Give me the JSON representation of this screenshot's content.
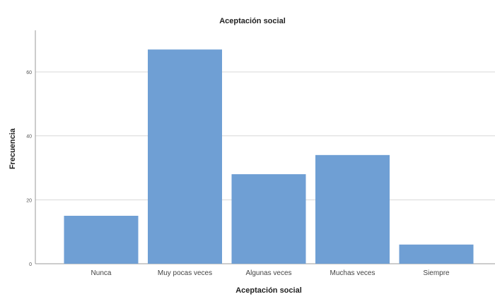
{
  "chart_data": {
    "type": "bar",
    "title": "Aceptación social",
    "xlabel": "Aceptación social",
    "ylabel": "Frecuencia",
    "categories": [
      "Nunca",
      "Muy pocas veces",
      "Algunas veces",
      "Muchas veces",
      "Siempre"
    ],
    "values": [
      15,
      67,
      28,
      34,
      6
    ],
    "ylim": [
      0,
      73
    ],
    "yticks": [
      0,
      20,
      40,
      60
    ],
    "grid": true,
    "bar_color": "#6f9fd4"
  }
}
